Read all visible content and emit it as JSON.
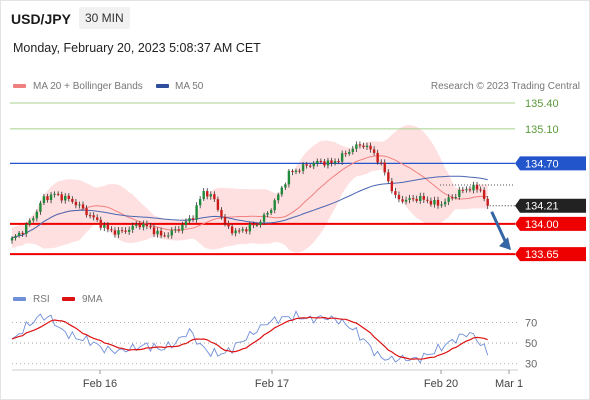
{
  "header": {
    "symbol": "USD/JPY",
    "timeframe": "30 MIN",
    "datetime": "Monday, February 20, 2023 5:08:37 AM CET",
    "credit": "Research © 2023 Trading Central"
  },
  "legend": {
    "ma20": "MA 20 + Bollinger Bands",
    "ma50": "MA 50",
    "rsi": "RSI",
    "ma9": "9MA"
  },
  "colors": {
    "ma20": "#f08080",
    "band": "#fdd6d6",
    "ma50": "#4a66b3",
    "up": "#1f8a3a",
    "down": "#cc1b1b",
    "resistance": "#a8d08d",
    "pivot": "#2255cc",
    "support": "#ee0000",
    "last": "#222222",
    "rsi": "#6f8fd8",
    "rsi_ma": "#dd1111"
  },
  "chart_data": [
    {
      "type": "candlestick",
      "title": "USD/JPY 30 MIN",
      "x_labels": [
        "Feb 16",
        "Feb 17",
        "Feb 20",
        "Mar 1"
      ],
      "ylim": [
        133.35,
        135.55
      ],
      "levels": [
        {
          "label": "135.40",
          "value": 135.4,
          "kind": "resistance"
        },
        {
          "label": "135.10",
          "value": 135.1,
          "kind": "resistance"
        },
        {
          "label": "134.70",
          "value": 134.7,
          "kind": "pivot"
        },
        {
          "label": "134.21",
          "value": 134.21,
          "kind": "last"
        },
        {
          "label": "134.00",
          "value": 134.0,
          "kind": "support"
        },
        {
          "label": "133.65",
          "value": 133.65,
          "kind": "support"
        }
      ],
      "close_anchors": [
        [
          0,
          133.82
        ],
        [
          3,
          133.92
        ],
        [
          6,
          134.08
        ],
        [
          9,
          134.3
        ],
        [
          12,
          134.34
        ],
        [
          15,
          134.3
        ],
        [
          18,
          134.24
        ],
        [
          21,
          134.13
        ],
        [
          24,
          134.03
        ],
        [
          27,
          133.93
        ],
        [
          30,
          133.9
        ],
        [
          33,
          133.94
        ],
        [
          36,
          134.0
        ],
        [
          39,
          133.95
        ],
        [
          42,
          133.86
        ],
        [
          45,
          133.9
        ],
        [
          48,
          133.98
        ],
        [
          51,
          134.09
        ],
        [
          54,
          134.38
        ],
        [
          57,
          134.28
        ],
        [
          60,
          133.99
        ],
        [
          63,
          133.9
        ],
        [
          66,
          133.95
        ],
        [
          69,
          134.0
        ],
        [
          72,
          134.12
        ],
        [
          75,
          134.33
        ],
        [
          78,
          134.58
        ],
        [
          81,
          134.64
        ],
        [
          84,
          134.69
        ],
        [
          87,
          134.72
        ],
        [
          90,
          134.7
        ],
        [
          93,
          134.78
        ],
        [
          96,
          134.88
        ],
        [
          99,
          134.92
        ],
        [
          102,
          134.82
        ],
        [
          105,
          134.6
        ],
        [
          108,
          134.3
        ],
        [
          111,
          134.27
        ],
        [
          114,
          134.3
        ],
        [
          117,
          134.27
        ],
        [
          120,
          134.22
        ],
        [
          123,
          134.28
        ],
        [
          126,
          134.37
        ],
        [
          129,
          134.42
        ],
        [
          132,
          134.4
        ],
        [
          134,
          134.21
        ]
      ],
      "forecast_arrow": {
        "from": 134.21,
        "to": 133.65
      }
    },
    {
      "type": "line",
      "title": "RSI",
      "series": [
        {
          "name": "RSI"
        },
        {
          "name": "9MA"
        }
      ],
      "yticks": [
        30,
        50,
        70
      ],
      "ylim": [
        22,
        82
      ],
      "rsi_anchors": [
        [
          0,
          52
        ],
        [
          4,
          66
        ],
        [
          8,
          76
        ],
        [
          11,
          74
        ],
        [
          14,
          62
        ],
        [
          18,
          55
        ],
        [
          22,
          52
        ],
        [
          26,
          44
        ],
        [
          30,
          42
        ],
        [
          34,
          45
        ],
        [
          38,
          48
        ],
        [
          42,
          44
        ],
        [
          46,
          50
        ],
        [
          50,
          62
        ],
        [
          53,
          48
        ],
        [
          56,
          40
        ],
        [
          60,
          40
        ],
        [
          64,
          50
        ],
        [
          68,
          60
        ],
        [
          72,
          70
        ],
        [
          76,
          74
        ],
        [
          80,
          76
        ],
        [
          84,
          73
        ],
        [
          88,
          75
        ],
        [
          92,
          72
        ],
        [
          96,
          64
        ],
        [
          100,
          50
        ],
        [
          103,
          38
        ],
        [
          106,
          34
        ],
        [
          110,
          35
        ],
        [
          114,
          34
        ],
        [
          118,
          40
        ],
        [
          122,
          48
        ],
        [
          126,
          56
        ],
        [
          129,
          60
        ],
        [
          132,
          50
        ],
        [
          134,
          40
        ]
      ]
    }
  ]
}
